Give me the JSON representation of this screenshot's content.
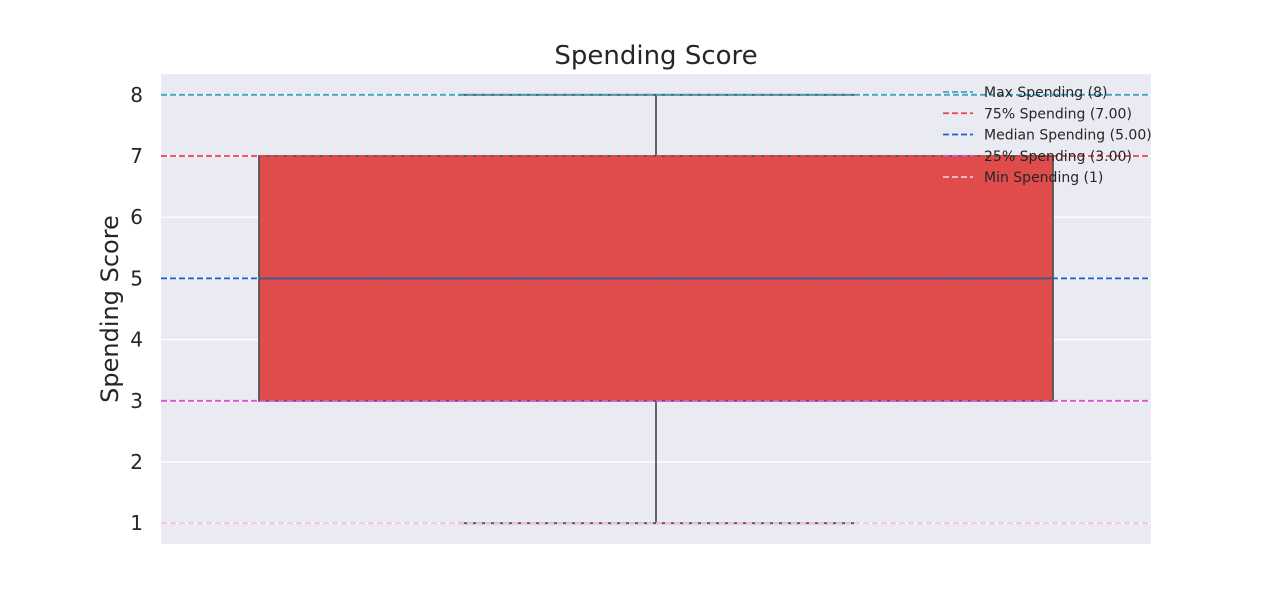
{
  "chart_data": {
    "type": "box",
    "title": "Spending Score",
    "xlabel": "",
    "ylabel": "Spending Score",
    "ylim": [
      0.66,
      8.34
    ],
    "yticks": [
      1,
      2,
      3,
      4,
      5,
      6,
      7,
      8
    ],
    "grid": true,
    "box": {
      "min": 1,
      "q1": 3,
      "median": 5,
      "q3": 7,
      "max": 8,
      "color": "#df4c4b"
    },
    "reference_lines": [
      {
        "label": "Max Spending (8)",
        "value": 8,
        "color": "#3fa5c0"
      },
      {
        "label": "75% Spending (7.00)",
        "value": 7,
        "color": "#e8444a"
      },
      {
        "label": "Median Spending (5.00)",
        "value": 5,
        "color": "#1f5fc7"
      },
      {
        "label": "25% Spending (3.00)",
        "value": 3,
        "color": "#e053d3"
      },
      {
        "label": "Min Spending (1)",
        "value": 1,
        "color": "#f7c4dc"
      }
    ],
    "legend_position": "top-right",
    "background_color": "#eaeaf2"
  }
}
